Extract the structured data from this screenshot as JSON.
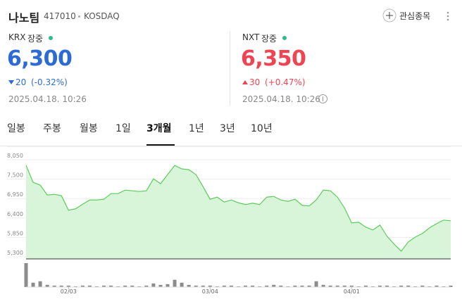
{
  "header": {
    "name": "나노팀",
    "code": "417010",
    "market": "KOSDAQ",
    "watch_button": "관심종목"
  },
  "quotes": [
    {
      "exchange": "KRX",
      "status": "장중",
      "price": "6,300",
      "change": "20",
      "change_pct": "(-0.32%)",
      "time": "2025.04.18. 10:26",
      "direction": "down"
    },
    {
      "exchange": "NXT",
      "status": "장중",
      "price": "6,350",
      "change": "30",
      "change_pct": "(+0.47%)",
      "time": "2025.04.18. 10:26",
      "direction": "up"
    }
  ],
  "tabs": [
    "일봉",
    "주봉",
    "월봉",
    "1일",
    "3개월",
    "1년",
    "3년",
    "10년"
  ],
  "active_tab": 4,
  "chart_data": {
    "type": "area",
    "categories": [
      null,
      null,
      null,
      null,
      null,
      null,
      "02/03",
      null,
      null,
      null,
      null,
      null,
      null,
      null,
      null,
      null,
      null,
      null,
      null,
      null,
      null,
      null,
      null,
      null,
      null,
      null,
      "03/04",
      null,
      null,
      null,
      null,
      null,
      null,
      null,
      null,
      null,
      null,
      null,
      null,
      null,
      null,
      null,
      null,
      null,
      null,
      null,
      "04/01",
      null,
      null,
      null,
      null,
      null,
      null,
      null,
      null,
      null,
      null,
      null,
      null,
      null,
      null
    ],
    "values": [
      7890,
      7410,
      7330,
      7050,
      7070,
      7030,
      6620,
      6660,
      6790,
      6910,
      6910,
      6930,
      7090,
      7090,
      7190,
      7170,
      7150,
      7170,
      7510,
      7370,
      7630,
      7890,
      7790,
      7770,
      7630,
      7290,
      6930,
      6990,
      6850,
      6910,
      6830,
      6780,
      6820,
      6780,
      6990,
      7010,
      6910,
      6870,
      6930,
      6760,
      6740,
      6910,
      7190,
      7170,
      6990,
      6680,
      6260,
      6280,
      6140,
      6060,
      6200,
      5880,
      5660,
      5460,
      5720,
      5860,
      5960,
      6120,
      6240,
      6340,
      6320
    ],
    "color": "#5ccc5c",
    "fill": "#d9f5d9",
    "ylim": [
      5240,
      8350
    ],
    "yticks": [
      {
        "value": 8050,
        "label": "8,050"
      },
      {
        "value": 7500,
        "label": "7,500"
      },
      {
        "value": 6950,
        "label": "6,950"
      },
      {
        "value": 6400,
        "label": "6,400"
      },
      {
        "value": 5850,
        "label": "5,850"
      },
      {
        "value": 5300,
        "label": "5,300"
      }
    ],
    "grid": true,
    "volume": {
      "color": "#8c8c8c",
      "values": [
        33,
        6,
        8,
        3,
        2,
        2,
        2,
        1,
        2,
        2,
        1,
        2,
        2,
        1,
        2,
        2,
        1,
        2,
        5,
        3,
        4,
        10,
        6,
        3,
        2,
        2,
        2,
        1,
        2,
        2,
        1,
        2,
        2,
        1,
        2,
        3,
        2,
        1,
        2,
        2,
        2,
        8,
        3,
        2,
        2,
        2,
        2,
        1,
        2,
        1,
        2,
        2,
        1,
        2,
        2,
        1,
        2,
        1,
        2,
        1,
        2
      ]
    }
  }
}
